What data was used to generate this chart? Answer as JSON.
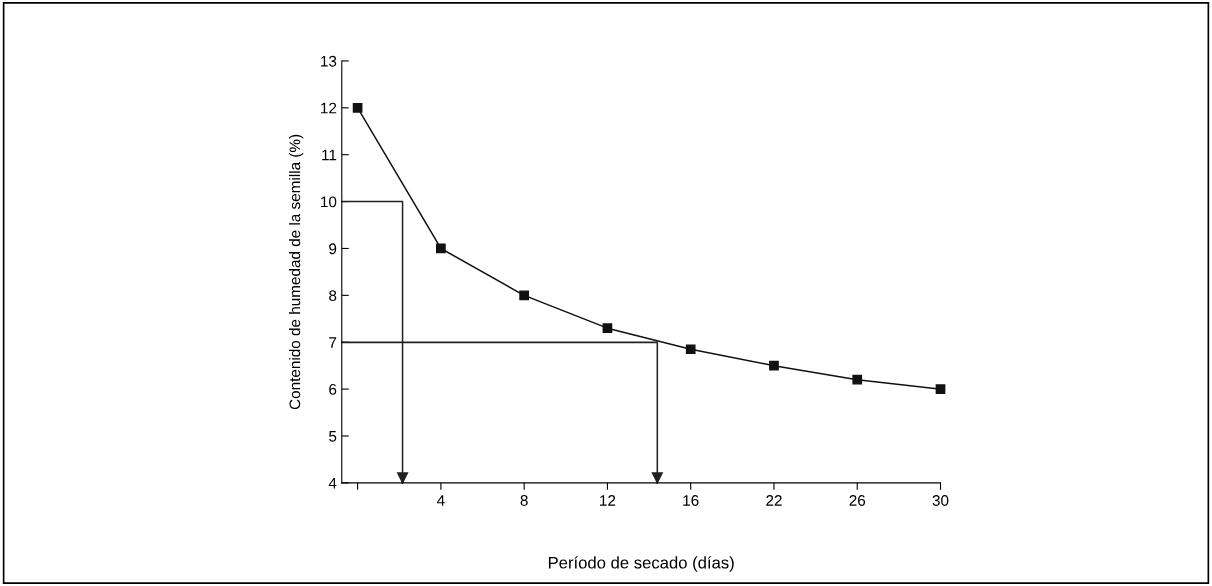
{
  "chart_data": {
    "type": "line",
    "xlabel": "Período de secado (días)",
    "ylabel": "Contenido de humedad de la semilla (%)",
    "categories": [
      null,
      "4",
      "8",
      "12",
      "16",
      "22",
      "26",
      "30"
    ],
    "ylim": [
      4,
      13
    ],
    "yticks": [
      4,
      5,
      6,
      7,
      8,
      9,
      10,
      11,
      12,
      13
    ],
    "grid": false,
    "legend": false,
    "series": [
      {
        "color": "#111111",
        "marker": "square",
        "values": [
          12,
          9,
          8,
          7.3,
          6.85,
          6.5,
          6.2,
          6.0
        ]
      }
    ]
  }
}
